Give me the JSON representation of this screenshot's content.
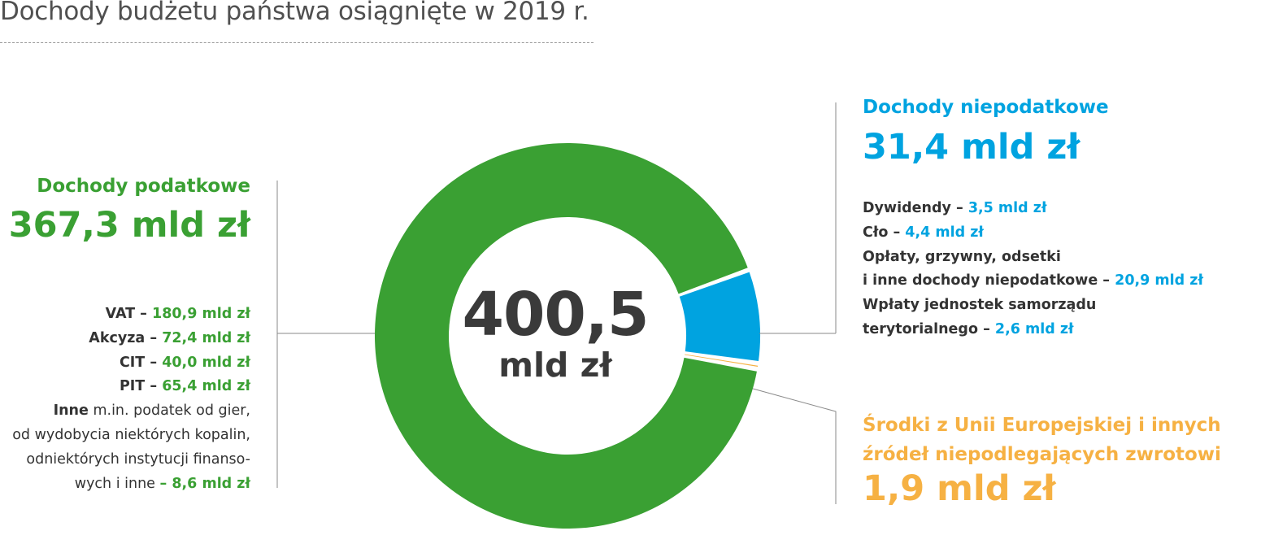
{
  "title": "Dochody budżetu państwa osiągnięte w 2019 r.",
  "center": {
    "value": "400,5",
    "unit": "mld zł"
  },
  "tax": {
    "heading": "Dochody podatkowe",
    "amount": "367,3 mld zł",
    "items": [
      {
        "name": "VAT",
        "sep": " – ",
        "value": "180,9 mld zł"
      },
      {
        "name": "Akcyza",
        "sep": " – ",
        "value": "72,4 mld zł"
      },
      {
        "name": "CIT",
        "sep": " – ",
        "value": "40,0 mld zł"
      },
      {
        "name": "PIT",
        "sep": " – ",
        "value": "65,4 mld zł"
      }
    ],
    "other": {
      "name": "Inne",
      "line1": " m.in. podatek od gier,",
      "line2": "od wydobycia niektórych kopalin,",
      "line3": "odniektórych instytucji finanso-",
      "line4": "wych i inne ",
      "sep": "– ",
      "value": "8,6 mld zł"
    }
  },
  "nontax": {
    "heading": "Dochody niepodatkowe",
    "amount": "31,4 mld zł",
    "items": [
      {
        "text": "Dywidendy – ",
        "value": "3,5 mld zł"
      },
      {
        "text": "Cło – ",
        "value": "4,4 mld zł"
      },
      {
        "text": "Opłaty, grzywny, odsetki",
        "value": ""
      },
      {
        "text": "i inne dochody niepodatkowe – ",
        "value": "20,9 mld zł"
      },
      {
        "text": "Wpłaty jednostek samorządu",
        "value": ""
      },
      {
        "text": "terytorialnego – ",
        "value": "2,6 mld zł"
      }
    ]
  },
  "eu": {
    "heading_line1": "Środki z Unii Europejskiej i innych",
    "heading_line2": "źródeł niepodlegających zwrotowi",
    "amount": "1,9 mld zł"
  },
  "colors": {
    "tax": "#3aa033",
    "nontax": "#00a3e0",
    "eu": "#f6b143",
    "text": "#333333"
  },
  "chart_data": {
    "type": "pie",
    "title": "Dochody budżetu państwa osiągnięte w 2019 r.",
    "total": 400.5,
    "unit": "mld zł",
    "donut": true,
    "slices": [
      {
        "label": "Dochody niepodatkowe",
        "value": 31.4,
        "color": "#00a3e0"
      },
      {
        "label": "Środki z Unii Europejskiej i innych źródeł niepodlegających zwrotowi",
        "value": 1.9,
        "color": "#f6b143"
      },
      {
        "label": "Dochody podatkowe",
        "value": 367.3,
        "color": "#3aa033"
      }
    ]
  }
}
